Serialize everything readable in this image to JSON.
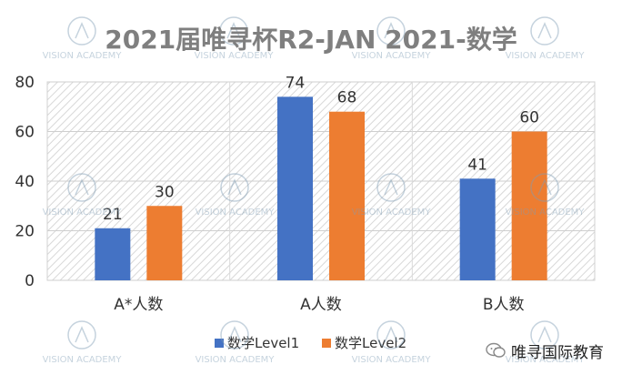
{
  "chart_data": {
    "type": "bar",
    "title": "2021届唯寻杯R2-JAN 2021-数学",
    "categories": [
      "A*人数",
      "A人数",
      "B人数"
    ],
    "series": [
      {
        "name": "数学Level1",
        "values": [
          21,
          74,
          41
        ],
        "color": "#4472c4"
      },
      {
        "name": "数学Level2",
        "values": [
          30,
          68,
          60
        ],
        "color": "#ed7d31"
      }
    ],
    "ylim": [
      0,
      80
    ],
    "yticks": [
      0,
      20,
      40,
      60,
      80
    ],
    "grid": true,
    "legend": "bottom"
  },
  "watermark": {
    "brand": "唯寻国际教育",
    "name": "VISION ACADEMY"
  }
}
